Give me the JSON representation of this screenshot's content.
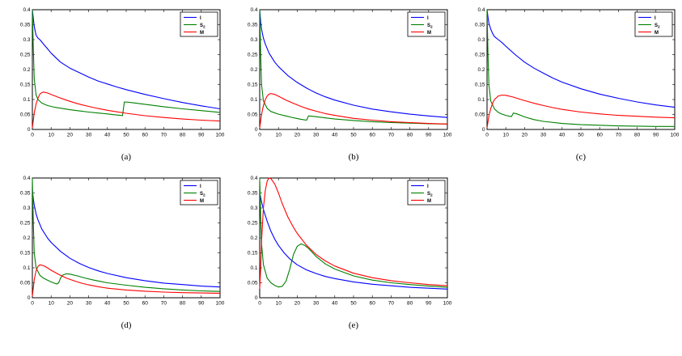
{
  "figure": {
    "background": "#ffffff",
    "axis_color": "#000000",
    "tick_label_color": "#000000",
    "grid": false,
    "xticks": [
      "0",
      "10",
      "20",
      "30",
      "40",
      "50",
      "60",
      "70",
      "80",
      "90",
      "100"
    ],
    "yticks": [
      "0",
      "0.05",
      "0.1",
      "0.15",
      "0.2",
      "0.25",
      "0.3",
      "0.35",
      "0.4"
    ],
    "legend_position": "top-right",
    "legend_entries": [
      {
        "label": "I",
        "color": "#0000ff"
      },
      {
        "label": "S_2",
        "color": "#008000"
      },
      {
        "label": "M",
        "color": "#ff0000"
      }
    ]
  },
  "chart_data": [
    {
      "type": "line",
      "label": "(a)",
      "xlim": [
        0,
        100
      ],
      "ylim": [
        0,
        0.4
      ],
      "xlabel": "",
      "ylabel": "",
      "series": [
        {
          "name": "I",
          "color": "#0000ff",
          "x": [
            0,
            0.5,
            1,
            2,
            3,
            4,
            6,
            8,
            10,
            15,
            20,
            25,
            30,
            35,
            40,
            45,
            50,
            60,
            70,
            80,
            90,
            100
          ],
          "y": [
            0.4,
            0.37,
            0.345,
            0.315,
            0.305,
            0.3,
            0.285,
            0.27,
            0.255,
            0.225,
            0.205,
            0.19,
            0.175,
            0.162,
            0.152,
            0.142,
            0.133,
            0.117,
            0.103,
            0.09,
            0.079,
            0.069
          ]
        },
        {
          "name": "S_2",
          "color": "#008000",
          "x": [
            0,
            0.5,
            1,
            2,
            3,
            5,
            8,
            12,
            16,
            20,
            25,
            30,
            35,
            40,
            44,
            47,
            48,
            49,
            51,
            55,
            60,
            70,
            80,
            90,
            100
          ],
          "y": [
            0.4,
            0.27,
            0.17,
            0.115,
            0.1,
            0.088,
            0.08,
            0.074,
            0.07,
            0.066,
            0.062,
            0.058,
            0.055,
            0.052,
            0.049,
            0.047,
            0.046,
            0.092,
            0.091,
            0.088,
            0.084,
            0.076,
            0.069,
            0.063,
            0.057
          ]
        },
        {
          "name": "M",
          "color": "#ff0000",
          "x": [
            0,
            1,
            2,
            3,
            4,
            5,
            6,
            8,
            10,
            14,
            18,
            22,
            26,
            30,
            35,
            40,
            45,
            50,
            55,
            60,
            70,
            80,
            90,
            100
          ],
          "y": [
            0.005,
            0.055,
            0.085,
            0.105,
            0.118,
            0.123,
            0.125,
            0.122,
            0.117,
            0.107,
            0.098,
            0.09,
            0.083,
            0.077,
            0.07,
            0.064,
            0.059,
            0.054,
            0.05,
            0.046,
            0.04,
            0.035,
            0.031,
            0.028
          ]
        }
      ]
    },
    {
      "type": "line",
      "label": "(b)",
      "xlim": [
        0,
        100
      ],
      "ylim": [
        0,
        0.4
      ],
      "xlabel": "",
      "ylabel": "",
      "series": [
        {
          "name": "I",
          "color": "#0000ff",
          "x": [
            0,
            0.5,
            1,
            2,
            3,
            5,
            8,
            10,
            15,
            20,
            25,
            30,
            35,
            40,
            50,
            60,
            70,
            80,
            90,
            100
          ],
          "y": [
            0.4,
            0.36,
            0.335,
            0.305,
            0.285,
            0.255,
            0.225,
            0.21,
            0.18,
            0.157,
            0.138,
            0.122,
            0.109,
            0.098,
            0.081,
            0.068,
            0.059,
            0.051,
            0.045,
            0.04
          ]
        },
        {
          "name": "S_2",
          "color": "#008000",
          "x": [
            0,
            0.5,
            1,
            2,
            4,
            6,
            10,
            14,
            18,
            22,
            24,
            25,
            26,
            28,
            32,
            36,
            40,
            50,
            60,
            70,
            80,
            90,
            100
          ],
          "y": [
            0.4,
            0.25,
            0.15,
            0.095,
            0.07,
            0.06,
            0.051,
            0.045,
            0.039,
            0.034,
            0.032,
            0.031,
            0.045,
            0.044,
            0.041,
            0.038,
            0.035,
            0.03,
            0.026,
            0.023,
            0.021,
            0.019,
            0.018
          ]
        },
        {
          "name": "M",
          "color": "#ff0000",
          "x": [
            0,
            1,
            2,
            3,
            4,
            5,
            6,
            8,
            10,
            14,
            18,
            22,
            26,
            30,
            35,
            40,
            50,
            60,
            70,
            80,
            90,
            100
          ],
          "y": [
            0.005,
            0.05,
            0.08,
            0.1,
            0.112,
            0.118,
            0.12,
            0.117,
            0.111,
            0.098,
            0.087,
            0.077,
            0.068,
            0.061,
            0.053,
            0.047,
            0.037,
            0.031,
            0.026,
            0.023,
            0.02,
            0.018
          ]
        }
      ]
    },
    {
      "type": "line",
      "label": "(c)",
      "xlim": [
        0,
        100
      ],
      "ylim": [
        0,
        0.4
      ],
      "xlabel": "",
      "ylabel": "",
      "series": [
        {
          "name": "I",
          "color": "#0000ff",
          "x": [
            0,
            0.5,
            1,
            2,
            3,
            4,
            5,
            6,
            8,
            10,
            15,
            20,
            25,
            30,
            35,
            40,
            50,
            60,
            70,
            80,
            90,
            100
          ],
          "y": [
            0.4,
            0.375,
            0.355,
            0.335,
            0.32,
            0.31,
            0.305,
            0.3,
            0.29,
            0.278,
            0.25,
            0.225,
            0.205,
            0.188,
            0.172,
            0.158,
            0.136,
            0.118,
            0.104,
            0.092,
            0.082,
            0.074
          ]
        },
        {
          "name": "S_2",
          "color": "#008000",
          "x": [
            0,
            0.5,
            1,
            2,
            4,
            6,
            8,
            10,
            12,
            13,
            14,
            16,
            18,
            20,
            25,
            30,
            40,
            50,
            60,
            70,
            80,
            90,
            100
          ],
          "y": [
            0.4,
            0.25,
            0.15,
            0.095,
            0.068,
            0.057,
            0.051,
            0.047,
            0.044,
            0.043,
            0.055,
            0.052,
            0.047,
            0.042,
            0.033,
            0.027,
            0.02,
            0.016,
            0.014,
            0.012,
            0.011,
            0.01,
            0.01
          ]
        },
        {
          "name": "M",
          "color": "#ff0000",
          "x": [
            0,
            1,
            2,
            3,
            4,
            6,
            8,
            10,
            14,
            18,
            22,
            26,
            30,
            35,
            40,
            50,
            60,
            70,
            80,
            90,
            100
          ],
          "y": [
            0.005,
            0.045,
            0.07,
            0.088,
            0.1,
            0.112,
            0.115,
            0.114,
            0.108,
            0.1,
            0.093,
            0.086,
            0.08,
            0.073,
            0.067,
            0.058,
            0.052,
            0.047,
            0.044,
            0.041,
            0.039
          ]
        }
      ]
    },
    {
      "type": "line",
      "label": "(d)",
      "xlim": [
        0,
        100
      ],
      "ylim": [
        0,
        0.4
      ],
      "xlabel": "",
      "ylabel": "",
      "series": [
        {
          "name": "I",
          "color": "#0000ff",
          "x": [
            0,
            0.5,
            1,
            2,
            3,
            5,
            8,
            10,
            15,
            20,
            25,
            30,
            35,
            40,
            50,
            60,
            70,
            80,
            90,
            100
          ],
          "y": [
            0.36,
            0.33,
            0.31,
            0.28,
            0.26,
            0.23,
            0.2,
            0.185,
            0.155,
            0.132,
            0.115,
            0.101,
            0.09,
            0.081,
            0.067,
            0.057,
            0.049,
            0.044,
            0.039,
            0.036
          ]
        },
        {
          "name": "S_2",
          "color": "#008000",
          "x": [
            0,
            0.5,
            1,
            2,
            4,
            6,
            8,
            10,
            12,
            13,
            14,
            15,
            16,
            18,
            20,
            24,
            28,
            32,
            36,
            40,
            50,
            60,
            70,
            80,
            90,
            100
          ],
          "y": [
            0.4,
            0.25,
            0.15,
            0.1,
            0.075,
            0.065,
            0.059,
            0.053,
            0.048,
            0.046,
            0.05,
            0.065,
            0.075,
            0.08,
            0.079,
            0.073,
            0.066,
            0.06,
            0.055,
            0.05,
            0.042,
            0.035,
            0.03,
            0.026,
            0.023,
            0.021
          ]
        },
        {
          "name": "M",
          "color": "#ff0000",
          "x": [
            0,
            1,
            2,
            3,
            4,
            6,
            8,
            10,
            14,
            18,
            22,
            26,
            30,
            35,
            40,
            50,
            60,
            70,
            80,
            90,
            100
          ],
          "y": [
            0.005,
            0.06,
            0.09,
            0.105,
            0.11,
            0.107,
            0.1,
            0.092,
            0.078,
            0.066,
            0.057,
            0.049,
            0.043,
            0.037,
            0.032,
            0.026,
            0.022,
            0.019,
            0.017,
            0.016,
            0.015
          ]
        }
      ]
    },
    {
      "type": "line",
      "label": "(e)",
      "xlim": [
        0,
        100
      ],
      "ylim": [
        0,
        0.4
      ],
      "xlabel": "",
      "ylabel": "",
      "series": [
        {
          "name": "I",
          "color": "#0000ff",
          "x": [
            0,
            0.5,
            1,
            2,
            4,
            6,
            8,
            10,
            13,
            16,
            20,
            25,
            30,
            35,
            40,
            50,
            60,
            70,
            80,
            90,
            100
          ],
          "y": [
            0.35,
            0.335,
            0.32,
            0.295,
            0.255,
            0.222,
            0.196,
            0.175,
            0.15,
            0.13,
            0.11,
            0.093,
            0.081,
            0.071,
            0.064,
            0.053,
            0.045,
            0.04,
            0.035,
            0.032,
            0.029
          ]
        },
        {
          "name": "S_2",
          "color": "#008000",
          "x": [
            0,
            0.5,
            1,
            2,
            4,
            6,
            8,
            10,
            12,
            14,
            16,
            18,
            20,
            22,
            24,
            26,
            30,
            35,
            40,
            50,
            60,
            70,
            80,
            90,
            100
          ],
          "y": [
            0.4,
            0.27,
            0.18,
            0.11,
            0.065,
            0.05,
            0.041,
            0.036,
            0.038,
            0.055,
            0.095,
            0.145,
            0.172,
            0.18,
            0.175,
            0.165,
            0.138,
            0.113,
            0.096,
            0.073,
            0.059,
            0.05,
            0.044,
            0.039,
            0.035
          ]
        },
        {
          "name": "M",
          "color": "#ff0000",
          "x": [
            0,
            0.5,
            1,
            2,
            3,
            4,
            5,
            6,
            8,
            10,
            12,
            15,
            18,
            20,
            25,
            30,
            35,
            40,
            50,
            60,
            70,
            80,
            90,
            100
          ],
          "y": [
            0.03,
            0.1,
            0.19,
            0.3,
            0.36,
            0.39,
            0.4,
            0.398,
            0.38,
            0.35,
            0.315,
            0.27,
            0.235,
            0.215,
            0.175,
            0.145,
            0.123,
            0.106,
            0.082,
            0.067,
            0.057,
            0.05,
            0.044,
            0.04
          ]
        }
      ]
    }
  ]
}
